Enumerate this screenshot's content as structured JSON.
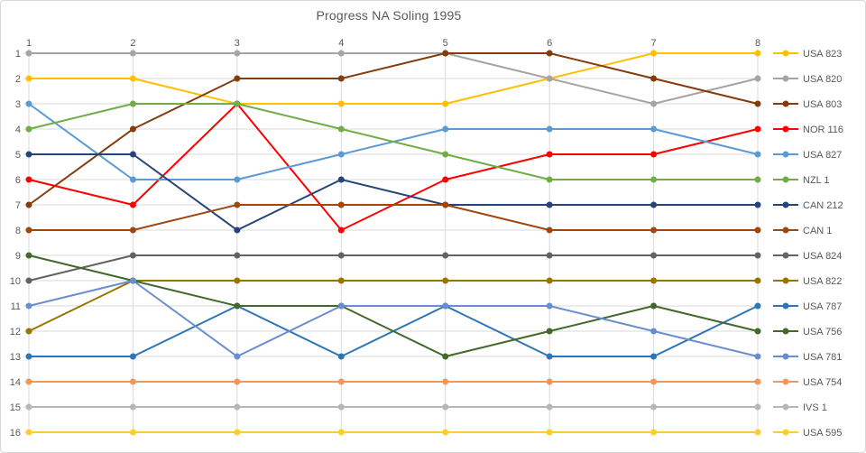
{
  "chart_data": {
    "type": "line",
    "title": "Progress NA Soling 1995",
    "xlabel": "",
    "ylabel": "",
    "x": [
      1,
      2,
      3,
      4,
      5,
      6,
      7,
      8
    ],
    "x_ticks": [
      "1",
      "2",
      "3",
      "4",
      "5",
      "6",
      "7",
      "8"
    ],
    "y_ticks": [
      "1",
      "2",
      "3",
      "4",
      "5",
      "6",
      "7",
      "8",
      "9",
      "10",
      "11",
      "12",
      "13",
      "14",
      "15",
      "16"
    ],
    "ylim": [
      1,
      16
    ],
    "y_axis_inverted": true,
    "grid": true,
    "legend_position": "right",
    "colors": {
      "gridline": "#d9d9d9",
      "axis_text": "#595959",
      "title_text": "#595959"
    },
    "series": [
      {
        "name": "USA 823",
        "color": "#FFC000",
        "values": [
          2,
          2,
          3,
          3,
          3,
          2,
          1,
          1
        ]
      },
      {
        "name": "USA 820",
        "color": "#A5A5A5",
        "values": [
          1,
          1,
          1,
          1,
          1,
          2,
          3,
          2
        ]
      },
      {
        "name": "USA 803",
        "color": "#843C0C",
        "values": [
          7,
          4,
          2,
          2,
          1,
          1,
          2,
          3
        ]
      },
      {
        "name": "NOR 116",
        "color": "#FF0000",
        "values": [
          6,
          7,
          3,
          8,
          6,
          5,
          5,
          4
        ]
      },
      {
        "name": "USA 827",
        "color": "#5B9BD5",
        "values": [
          3,
          6,
          6,
          5,
          4,
          4,
          4,
          5
        ]
      },
      {
        "name": "NZL 1",
        "color": "#70AD47",
        "values": [
          4,
          3,
          3,
          4,
          5,
          6,
          6,
          6
        ]
      },
      {
        "name": "CAN 212",
        "color": "#264478",
        "values": [
          5,
          5,
          8,
          6,
          7,
          7,
          7,
          7
        ]
      },
      {
        "name": "CAN 1",
        "color": "#9E480E",
        "values": [
          8,
          8,
          7,
          7,
          7,
          8,
          8,
          8
        ]
      },
      {
        "name": "USA 824",
        "color": "#636363",
        "values": [
          10,
          9,
          9,
          9,
          9,
          9,
          9,
          9
        ]
      },
      {
        "name": "USA 822",
        "color": "#997300",
        "values": [
          12,
          10,
          10,
          10,
          10,
          10,
          10,
          10
        ]
      },
      {
        "name": "USA 787",
        "color": "#2E75B6",
        "values": [
          13,
          13,
          11,
          13,
          11,
          13,
          13,
          11
        ]
      },
      {
        "name": "USA 756",
        "color": "#43682B",
        "values": [
          9,
          10,
          11,
          11,
          13,
          12,
          11,
          12
        ]
      },
      {
        "name": "USA 781",
        "color": "#698ED0",
        "values": [
          11,
          10,
          13,
          11,
          11,
          11,
          12,
          13
        ]
      },
      {
        "name": "USA 754",
        "color": "#F1975A",
        "values": [
          14,
          14,
          14,
          14,
          14,
          14,
          14,
          14
        ]
      },
      {
        "name": "IVS 1",
        "color": "#B7B7B7",
        "values": [
          15,
          15,
          15,
          15,
          15,
          15,
          15,
          15
        ]
      },
      {
        "name": "USA 595",
        "color": "#FFCD33",
        "values": [
          16,
          16,
          16,
          16,
          16,
          16,
          16,
          16
        ]
      }
    ]
  }
}
